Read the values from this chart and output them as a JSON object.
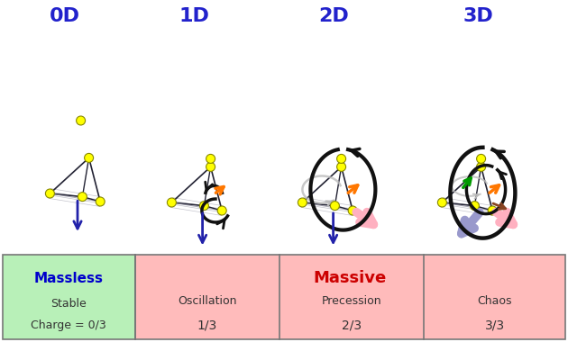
{
  "labels_top": [
    "0D",
    "1D",
    "2D",
    "3D"
  ],
  "label_color": "#2222CC",
  "table": {
    "col0_label": "Massless",
    "col0_sub1": "Stable",
    "col0_sub2": "Charge = 0/3",
    "col0_bg": "#b8f0b8",
    "col0_label_color": "#0000CC",
    "col_rest_label": "Massive",
    "col_rest_label_color": "#CC0000",
    "col_rest_bg": "#ffbbbb",
    "cols": [
      {
        "sub1": "Oscillation",
        "sub2": "1/3"
      },
      {
        "sub1": "Precession",
        "sub2": "2/3"
      },
      {
        "sub1": "Chaos",
        "sub2": "3/3"
      }
    ],
    "border_color": "#777777",
    "text_color": "#333333",
    "label_fontsize": 11,
    "sub_fontsize": 9
  },
  "node_color": "#FFFF00",
  "node_edge": "#888800",
  "arrow_up_color": "#2222AA",
  "edge_color_dark": "#222233",
  "edge_color_light": "#888899",
  "pink_arrow_color": "#FFB0C0",
  "orange_arrow_color": "#FF7700",
  "black_arrow_color": "#111111",
  "green_color": "#009900",
  "violet_arrow_color": "#9999CC",
  "brown_color": "#884422"
}
